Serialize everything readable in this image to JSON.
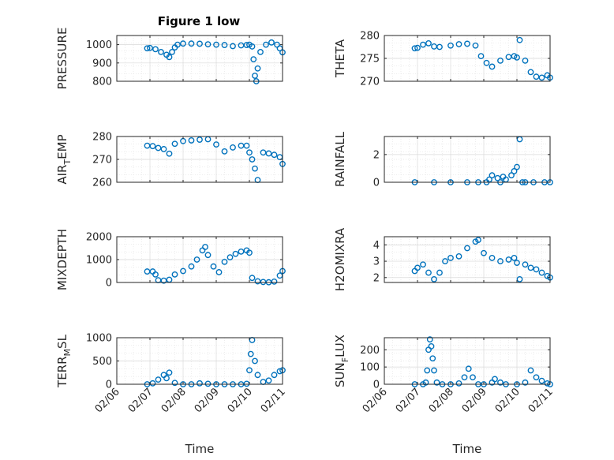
{
  "figure": {
    "title": "Figure 1 low",
    "marker_color": "#0072BD"
  },
  "chart_data": [
    {
      "type": "scatter",
      "title": "Figure 1 low",
      "ylabel": "PRESSURE",
      "xlabel": "",
      "ylim": [
        800,
        1050
      ],
      "yticks": [
        800,
        900,
        1000
      ],
      "xlim": [
        "02/06",
        "02/11"
      ],
      "xticks": [],
      "grid": true,
      "series": [
        {
          "x": [
            "02/06 22:00",
            "02/07 00:00",
            "02/07 04:00",
            "02/07 08:00",
            "02/07 12:00",
            "02/07 14:00",
            "02/07 16:00",
            "02/07 18:00",
            "02/07 20:00",
            "02/08 00:00",
            "02/08 06:00",
            "02/08 12:00",
            "02/08 18:00",
            "02/09 00:00",
            "02/09 06:00",
            "02/09 12:00",
            "02/09 18:00",
            "02/09 22:00",
            "02/10 00:00",
            "02/10 02:00",
            "02/10 03:00",
            "02/10 04:00",
            "02/10 05:00",
            "02/10 06:00",
            "02/10 08:00",
            "02/10 12:00",
            "02/10 16:00",
            "02/10 20:00",
            "02/10 22:00",
            "02/11 00:00"
          ],
          "y": [
            980,
            982,
            975,
            960,
            945,
            932,
            960,
            985,
            1000,
            1006,
            1006,
            1005,
            1002,
            1000,
            998,
            992,
            996,
            998,
            1000,
            990,
            920,
            830,
            800,
            870,
            960,
            1000,
            1012,
            1000,
            980,
            958
          ]
        }
      ]
    },
    {
      "type": "scatter",
      "ylabel": "THETA",
      "ylim": [
        270,
        280
      ],
      "yticks": [
        270,
        275,
        280
      ],
      "xlim": [
        "02/06",
        "02/11"
      ],
      "xticks": [],
      "grid": true,
      "series": [
        {
          "x": [
            "02/06 22:00",
            "02/07 00:00",
            "02/07 04:00",
            "02/07 08:00",
            "02/07 12:00",
            "02/07 16:00",
            "02/08 00:00",
            "02/08 06:00",
            "02/08 12:00",
            "02/08 18:00",
            "02/08 22:00",
            "02/09 02:00",
            "02/09 06:00",
            "02/09 12:00",
            "02/09 18:00",
            "02/09 22:00",
            "02/10 00:00",
            "02/10 02:00",
            "02/10 06:00",
            "02/10 10:00",
            "02/10 14:00",
            "02/10 18:00",
            "02/10 22:00",
            "02/11 00:00"
          ],
          "y": [
            277.2,
            277.3,
            278,
            278.3,
            277.6,
            277.5,
            277.8,
            278.1,
            278.2,
            277.8,
            275.5,
            274,
            273.2,
            274.5,
            275.3,
            275.5,
            275.2,
            279,
            274.5,
            272,
            271,
            270.8,
            271.3,
            270.8
          ]
        }
      ]
    },
    {
      "type": "scatter",
      "ylabel": "AIR_TEMP",
      "ylim": [
        260,
        280
      ],
      "yticks": [
        260,
        270,
        280
      ],
      "xlim": [
        "02/06",
        "02/11"
      ],
      "xticks": [],
      "grid": true,
      "series": [
        {
          "x": [
            "02/06 22:00",
            "02/07 02:00",
            "02/07 06:00",
            "02/07 10:00",
            "02/07 14:00",
            "02/07 18:00",
            "02/08 00:00",
            "02/08 06:00",
            "02/08 12:00",
            "02/08 18:00",
            "02/09 00:00",
            "02/09 06:00",
            "02/09 12:00",
            "02/09 18:00",
            "02/09 22:00",
            "02/10 00:00",
            "02/10 02:00",
            "02/10 04:00",
            "02/10 06:00",
            "02/10 10:00",
            "02/10 14:00",
            "02/10 18:00",
            "02/10 22:00",
            "02/11 00:00"
          ],
          "y": [
            276,
            275.8,
            275,
            274.5,
            272.5,
            276.8,
            278,
            278.3,
            278.6,
            278.8,
            276.5,
            273.5,
            275.2,
            276,
            276,
            273,
            270,
            266,
            261,
            273,
            272.6,
            272,
            271,
            268
          ]
        }
      ]
    },
    {
      "type": "scatter",
      "ylabel": "RAINFALL",
      "ylim": [
        0,
        3.3
      ],
      "yticks": [
        0,
        2
      ],
      "xlim": [
        "02/06",
        "02/11"
      ],
      "xticks": [],
      "grid": true,
      "series": [
        {
          "x": [
            "02/06 22:00",
            "02/07 12:00",
            "02/08 00:00",
            "02/08 12:00",
            "02/08 20:00",
            "02/09 02:00",
            "02/09 04:00",
            "02/09 06:00",
            "02/09 10:00",
            "02/09 12:00",
            "02/09 14:00",
            "02/09 16:00",
            "02/09 20:00",
            "02/09 22:00",
            "02/10 00:00",
            "02/10 02:00",
            "02/10 04:00",
            "02/10 06:00",
            "02/10 12:00",
            "02/10 20:00",
            "02/11 00:00"
          ],
          "y": [
            0,
            0,
            0,
            0,
            0,
            0,
            0.2,
            0.5,
            0.3,
            0,
            0.4,
            0.2,
            0.5,
            0.8,
            1.1,
            3.1,
            0,
            0,
            0,
            0,
            0
          ]
        }
      ]
    },
    {
      "type": "scatter",
      "ylabel": "MIXDEPTH",
      "ylim": [
        0,
        2000
      ],
      "yticks": [
        0,
        1000,
        2000
      ],
      "xlim": [
        "02/06",
        "02/11"
      ],
      "xticks": [],
      "grid": true,
      "series": [
        {
          "x": [
            "02/06 22:00",
            "02/07 02:00",
            "02/07 04:00",
            "02/07 06:00",
            "02/07 10:00",
            "02/07 14:00",
            "02/07 18:00",
            "02/08 00:00",
            "02/08 06:00",
            "02/08 10:00",
            "02/08 14:00",
            "02/08 16:00",
            "02/08 18:00",
            "02/08 22:00",
            "02/09 02:00",
            "02/09 06:00",
            "02/09 10:00",
            "02/09 14:00",
            "02/09 18:00",
            "02/09 22:00",
            "02/10 00:00",
            "02/10 02:00",
            "02/10 06:00",
            "02/10 10:00",
            "02/10 14:00",
            "02/10 18:00",
            "02/10 22:00",
            "02/11 00:00"
          ],
          "y": [
            480,
            480,
            350,
            100,
            80,
            120,
            350,
            500,
            700,
            1000,
            1400,
            1550,
            1200,
            700,
            450,
            900,
            1100,
            1250,
            1350,
            1400,
            1300,
            200,
            50,
            20,
            10,
            40,
            300,
            500
          ]
        }
      ]
    },
    {
      "type": "scatter",
      "ylabel": "H2OMIXRA",
      "ylim": [
        1.7,
        4.5
      ],
      "yticks": [
        2,
        3,
        4
      ],
      "xlim": [
        "02/06",
        "02/11"
      ],
      "xticks": [],
      "grid": true,
      "series": [
        {
          "x": [
            "02/06 22:00",
            "02/07 00:00",
            "02/07 04:00",
            "02/07 08:00",
            "02/07 12:00",
            "02/07 16:00",
            "02/07 20:00",
            "02/08 00:00",
            "02/08 06:00",
            "02/08 12:00",
            "02/08 18:00",
            "02/08 20:00",
            "02/09 00:00",
            "02/09 06:00",
            "02/09 12:00",
            "02/09 18:00",
            "02/09 22:00",
            "02/10 00:00",
            "02/10 02:00",
            "02/10 06:00",
            "02/10 10:00",
            "02/10 14:00",
            "02/10 18:00",
            "02/10 22:00",
            "02/11 00:00"
          ],
          "y": [
            2.4,
            2.6,
            2.8,
            2.3,
            1.9,
            2.3,
            3.0,
            3.2,
            3.3,
            3.8,
            4.2,
            4.3,
            3.5,
            3.2,
            3.0,
            3.1,
            3.2,
            2.9,
            1.9,
            2.8,
            2.6,
            2.5,
            2.3,
            2.1,
            2.0
          ]
        }
      ]
    },
    {
      "type": "scatter",
      "ylabel": "TERR_MSL",
      "ylim": [
        0,
        1000
      ],
      "yticks": [
        0,
        500,
        1000
      ],
      "xlim": [
        "02/06",
        "02/11"
      ],
      "xticks": [
        "02/06",
        "02/07",
        "02/08",
        "02/09",
        "02/10",
        "02/11"
      ],
      "xlabel": "Time",
      "grid": true,
      "series": [
        {
          "x": [
            "02/06 22:00",
            "02/07 02:00",
            "02/07 06:00",
            "02/07 10:00",
            "02/07 12:00",
            "02/07 14:00",
            "02/07 18:00",
            "02/08 00:00",
            "02/08 06:00",
            "02/08 12:00",
            "02/08 18:00",
            "02/09 00:00",
            "02/09 06:00",
            "02/09 12:00",
            "02/09 18:00",
            "02/09 22:00",
            "02/10 00:00",
            "02/10 01:00",
            "02/10 02:00",
            "02/10 04:00",
            "02/10 06:00",
            "02/10 10:00",
            "02/10 14:00",
            "02/10 18:00",
            "02/10 22:00",
            "02/11 00:00"
          ],
          "y": [
            0,
            20,
            100,
            200,
            130,
            250,
            30,
            0,
            0,
            20,
            10,
            0,
            0,
            0,
            0,
            10,
            300,
            650,
            950,
            500,
            200,
            50,
            80,
            200,
            280,
            300
          ]
        }
      ]
    },
    {
      "type": "scatter",
      "ylabel": "SUN_FLUX",
      "ylim": [
        0,
        270
      ],
      "yticks": [
        0,
        100,
        200
      ],
      "xlim": [
        "02/06",
        "02/11"
      ],
      "xticks": [
        "02/06",
        "02/07",
        "02/08",
        "02/09",
        "02/10",
        "02/11"
      ],
      "xlabel": "Time",
      "grid": true,
      "series": [
        {
          "x": [
            "02/06 22:00",
            "02/07 04:00",
            "02/07 06:00",
            "02/07 07:00",
            "02/07 08:00",
            "02/07 09:00",
            "02/07 10:00",
            "02/07 11:00",
            "02/07 12:00",
            "02/07 14:00",
            "02/07 18:00",
            "02/08 00:00",
            "02/08 06:00",
            "02/08 10:00",
            "02/08 13:00",
            "02/08 16:00",
            "02/08 20:00",
            "02/09 00:00",
            "02/09 06:00",
            "02/09 08:00",
            "02/09 12:00",
            "02/09 16:00",
            "02/10 00:00",
            "02/10 06:00",
            "02/10 10:00",
            "02/10 14:00",
            "02/10 18:00",
            "02/10 22:00",
            "02/11 00:00"
          ],
          "y": [
            0,
            0,
            10,
            80,
            200,
            260,
            220,
            150,
            80,
            10,
            0,
            0,
            5,
            40,
            90,
            40,
            0,
            0,
            10,
            30,
            10,
            0,
            0,
            10,
            80,
            40,
            20,
            5,
            0
          ]
        }
      ]
    }
  ]
}
